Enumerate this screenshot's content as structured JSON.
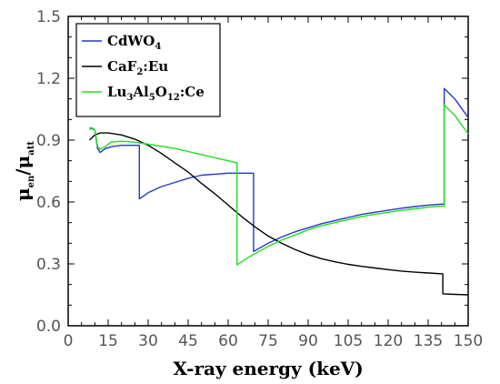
{
  "chart_data": {
    "type": "line",
    "xlabel": "X-ray energy (keV)",
    "ylabel_main": "μ",
    "ylabel_sub1": "en",
    "ylabel_sep": "/μ",
    "ylabel_sub2": "att",
    "xlim": [
      0,
      150
    ],
    "ylim": [
      0,
      1.5
    ],
    "x_ticks": [
      "0",
      "15",
      "30",
      "45",
      "60",
      "75",
      "90",
      "105",
      "120",
      "135",
      "150"
    ],
    "y_ticks": [
      "0.0",
      "0.3",
      "0.6",
      "0.9",
      "1.2",
      "1.5"
    ],
    "grid": false,
    "legend_position": "top-left",
    "legend": [
      {
        "parts": [
          {
            "t": "CdWO"
          },
          {
            "t": "4",
            "sub": true
          }
        ]
      },
      {
        "parts": [
          {
            "t": "CaF"
          },
          {
            "t": "2",
            "sub": true
          },
          {
            "t": ":Eu"
          }
        ]
      },
      {
        "parts": [
          {
            "t": "Lu"
          },
          {
            "t": "3",
            "sub": true
          },
          {
            "t": "Al"
          },
          {
            "t": "5",
            "sub": true
          },
          {
            "t": "O"
          },
          {
            "t": "12",
            "sub": true
          },
          {
            "t": ":Ce"
          }
        ]
      }
    ],
    "series": [
      {
        "color": "#2238c8",
        "points": [
          [
            8,
            0.96
          ],
          [
            9,
            0.955
          ],
          [
            10,
            0.95
          ],
          [
            11,
            0.86
          ],
          [
            12,
            0.84
          ],
          [
            14,
            0.86
          ],
          [
            17,
            0.87
          ],
          [
            20,
            0.875
          ],
          [
            23,
            0.875
          ],
          [
            26.7,
            0.875
          ],
          [
            26.7,
            0.615
          ],
          [
            30,
            0.645
          ],
          [
            35,
            0.675
          ],
          [
            40,
            0.695
          ],
          [
            45,
            0.715
          ],
          [
            50,
            0.73
          ],
          [
            55,
            0.735
          ],
          [
            60,
            0.74
          ],
          [
            65,
            0.74
          ],
          [
            69.5,
            0.74
          ],
          [
            69.5,
            0.36
          ],
          [
            75,
            0.4
          ],
          [
            80,
            0.43
          ],
          [
            85,
            0.455
          ],
          [
            90,
            0.475
          ],
          [
            95,
            0.495
          ],
          [
            100,
            0.51
          ],
          [
            105,
            0.525
          ],
          [
            110,
            0.54
          ],
          [
            115,
            0.55
          ],
          [
            120,
            0.56
          ],
          [
            125,
            0.57
          ],
          [
            130,
            0.578
          ],
          [
            135,
            0.585
          ],
          [
            140,
            0.59
          ],
          [
            141,
            0.59
          ],
          [
            141,
            1.15
          ],
          [
            145,
            1.1
          ],
          [
            150,
            1.01
          ]
        ]
      },
      {
        "color": "#000000",
        "points": [
          [
            8,
            0.9
          ],
          [
            10,
            0.925
          ],
          [
            12,
            0.935
          ],
          [
            15,
            0.935
          ],
          [
            20,
            0.925
          ],
          [
            25,
            0.905
          ],
          [
            30,
            0.875
          ],
          [
            35,
            0.835
          ],
          [
            40,
            0.79
          ],
          [
            45,
            0.745
          ],
          [
            50,
            0.69
          ],
          [
            55,
            0.64
          ],
          [
            60,
            0.585
          ],
          [
            65,
            0.53
          ],
          [
            70,
            0.48
          ],
          [
            75,
            0.435
          ],
          [
            80,
            0.4
          ],
          [
            85,
            0.37
          ],
          [
            90,
            0.345
          ],
          [
            95,
            0.325
          ],
          [
            100,
            0.31
          ],
          [
            105,
            0.298
          ],
          [
            110,
            0.288
          ],
          [
            115,
            0.28
          ],
          [
            120,
            0.272
          ],
          [
            125,
            0.265
          ],
          [
            130,
            0.26
          ],
          [
            135,
            0.256
          ],
          [
            140.5,
            0.252
          ],
          [
            140.5,
            0.155
          ],
          [
            145,
            0.152
          ],
          [
            150,
            0.15
          ]
        ]
      },
      {
        "color": "#22dd22",
        "points": [
          [
            8,
            0.95
          ],
          [
            9,
            0.96
          ],
          [
            10,
            0.95
          ],
          [
            11,
            0.87
          ],
          [
            12,
            0.855
          ],
          [
            14,
            0.87
          ],
          [
            16,
            0.89
          ],
          [
            20,
            0.895
          ],
          [
            25,
            0.89
          ],
          [
            30,
            0.88
          ],
          [
            35,
            0.87
          ],
          [
            40,
            0.86
          ],
          [
            45,
            0.845
          ],
          [
            50,
            0.83
          ],
          [
            55,
            0.815
          ],
          [
            60,
            0.8
          ],
          [
            63.3,
            0.79
          ],
          [
            63.3,
            0.295
          ],
          [
            68,
            0.335
          ],
          [
            75,
            0.385
          ],
          [
            80,
            0.415
          ],
          [
            85,
            0.44
          ],
          [
            90,
            0.465
          ],
          [
            95,
            0.485
          ],
          [
            100,
            0.5
          ],
          [
            105,
            0.515
          ],
          [
            110,
            0.53
          ],
          [
            115,
            0.54
          ],
          [
            120,
            0.55
          ],
          [
            125,
            0.56
          ],
          [
            130,
            0.567
          ],
          [
            135,
            0.575
          ],
          [
            140,
            0.58
          ],
          [
            141,
            0.58
          ],
          [
            141,
            1.07
          ],
          [
            145,
            1.02
          ],
          [
            150,
            0.93
          ]
        ]
      }
    ]
  }
}
